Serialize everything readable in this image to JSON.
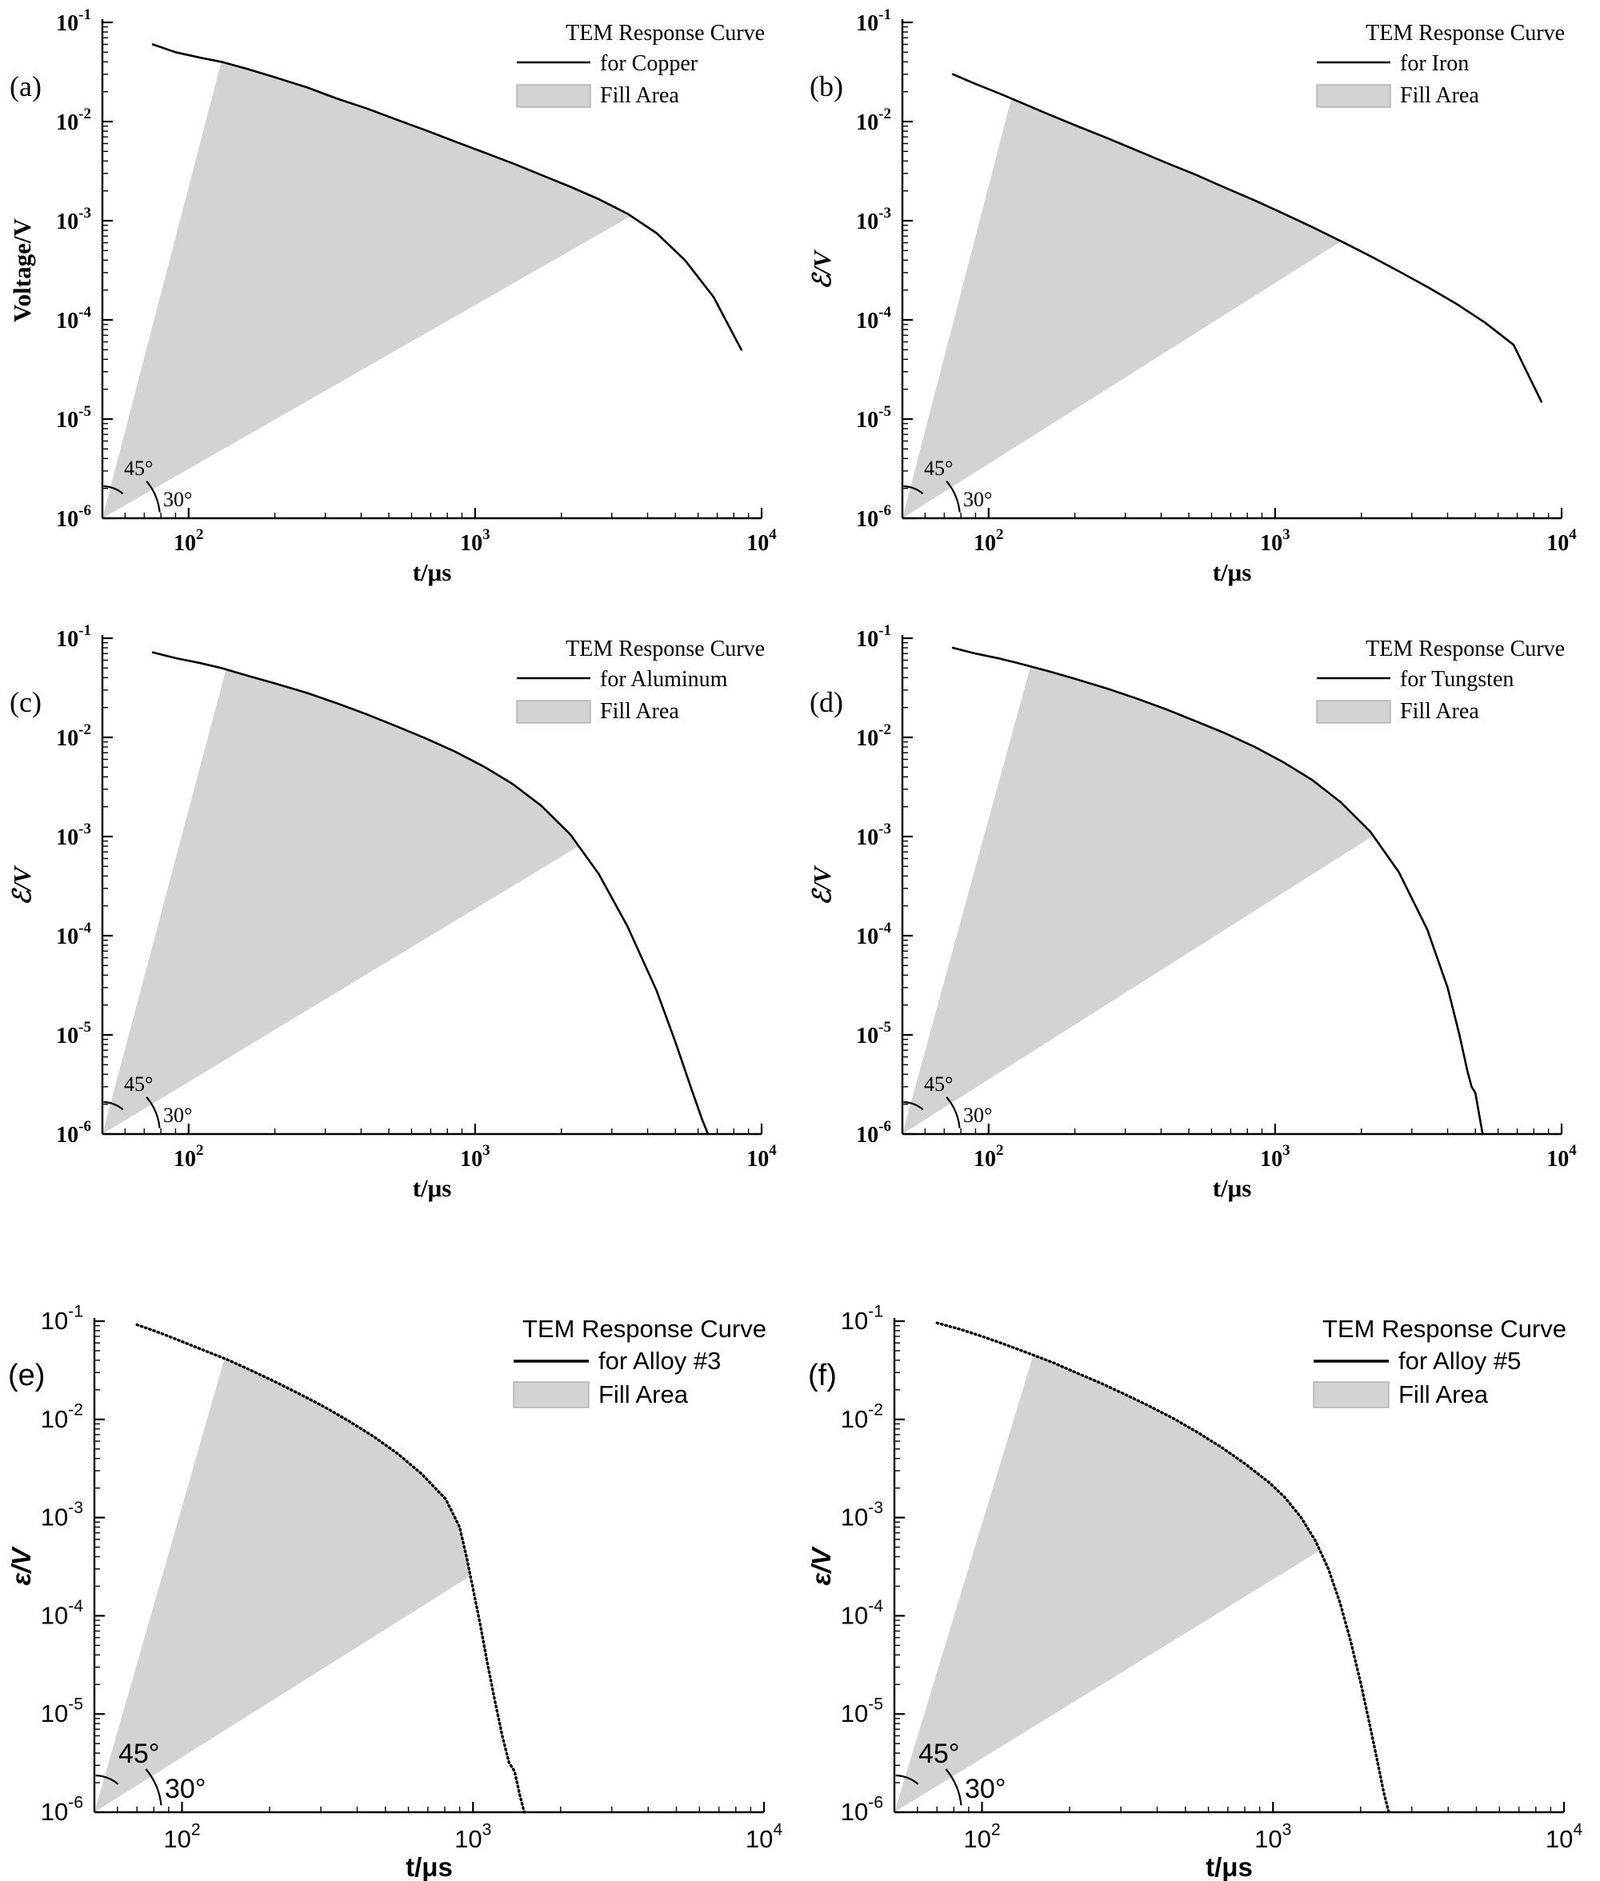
{
  "page": {
    "background": "#ffffff"
  },
  "chart_data": [
    {
      "id": "a",
      "tag": "(a)",
      "type": "line",
      "xlabel": "t/μs",
      "ylabel": "Voltage/V",
      "legend": {
        "title": "TEM Response Curve",
        "series_label": "for Copper",
        "fill_label": "Fill Area"
      },
      "legend_position": "top-right",
      "grid": false,
      "xlim": [
        50,
        10000
      ],
      "ylim": [
        1e-06,
        0.1
      ],
      "x_ticks": [
        100,
        1000,
        10000
      ],
      "y_ticks": [
        0.1,
        0.01,
        0.001,
        0.0001,
        1e-05,
        1e-06
      ],
      "angle_labels": [
        "45°",
        "30°"
      ],
      "fill": {
        "upper_t": 130,
        "lower_t": 3500
      },
      "series": [
        {
          "name": "TEM Response Curve for Copper",
          "points": [
            [
              75,
              0.06
            ],
            [
              90,
              0.05
            ],
            [
              110,
              0.044
            ],
            [
              130,
              0.04
            ],
            [
              160,
              0.034
            ],
            [
              200,
              0.028
            ],
            [
              260,
              0.022
            ],
            [
              330,
              0.017
            ],
            [
              420,
              0.0135
            ],
            [
              530,
              0.0105
            ],
            [
              670,
              0.0082
            ],
            [
              850,
              0.0063
            ],
            [
              1070,
              0.0049
            ],
            [
              1350,
              0.0038
            ],
            [
              1700,
              0.0029
            ],
            [
              2150,
              0.0022
            ],
            [
              2700,
              0.00165
            ],
            [
              3400,
              0.00118
            ],
            [
              4300,
              0.00075
            ],
            [
              5400,
              0.0004
            ],
            [
              6800,
              0.00017
            ],
            [
              8500,
              5e-05
            ]
          ]
        }
      ],
      "style": {
        "font": "serif-bold",
        "ylabel_italic": false
      },
      "colors": {
        "line": "#000000",
        "fill": "#d3d3d3"
      }
    },
    {
      "id": "b",
      "tag": "(b)",
      "type": "line",
      "xlabel": "t/μs",
      "ylabel": "ℰ/V",
      "legend": {
        "title": "TEM Response Curve",
        "series_label": "for Iron",
        "fill_label": "Fill Area"
      },
      "legend_position": "top-right",
      "grid": false,
      "xlim": [
        50,
        10000
      ],
      "ylim": [
        1e-06,
        0.1
      ],
      "x_ticks": [
        100,
        1000,
        10000
      ],
      "y_ticks": [
        0.1,
        0.01,
        0.001,
        0.0001,
        1e-05,
        1e-06
      ],
      "angle_labels": [
        "45°",
        "30°"
      ],
      "fill": {
        "upper_t": 120,
        "lower_t": 1700
      },
      "series": [
        {
          "name": "TEM Response Curve for Iron",
          "points": [
            [
              75,
              0.03
            ],
            [
              90,
              0.024
            ],
            [
              110,
              0.019
            ],
            [
              130,
              0.0155
            ],
            [
              160,
              0.012
            ],
            [
              200,
              0.0092
            ],
            [
              260,
              0.0068
            ],
            [
              330,
              0.0051
            ],
            [
              420,
              0.0038
            ],
            [
              530,
              0.0029
            ],
            [
              670,
              0.00215
            ],
            [
              850,
              0.0016
            ],
            [
              1070,
              0.00118
            ],
            [
              1350,
              0.00086
            ],
            [
              1700,
              0.00062
            ],
            [
              2150,
              0.00044
            ],
            [
              2700,
              0.00031
            ],
            [
              3400,
              0.000215
            ],
            [
              4300,
              0.000145
            ],
            [
              5400,
              9.4e-05
            ],
            [
              6800,
              5.6e-05
            ],
            [
              8500,
              1.5e-05
            ]
          ]
        }
      ],
      "style": {
        "font": "serif-bold",
        "ylabel_italic": true
      },
      "colors": {
        "line": "#000000",
        "fill": "#d3d3d3"
      }
    },
    {
      "id": "c",
      "tag": "(c)",
      "type": "line",
      "xlabel": "t/μs",
      "ylabel": "ℰ/V",
      "legend": {
        "title": "TEM Response Curve",
        "series_label": "for Aluminum",
        "fill_label": "Fill Area"
      },
      "legend_position": "top-right",
      "grid": false,
      "xlim": [
        50,
        10000
      ],
      "ylim": [
        1e-06,
        0.1
      ],
      "x_ticks": [
        100,
        1000,
        10000
      ],
      "y_ticks": [
        0.1,
        0.01,
        0.001,
        0.0001,
        1e-05,
        1e-06
      ],
      "angle_labels": [
        "45°",
        "30°"
      ],
      "fill": {
        "upper_t": 135,
        "lower_t": 2300
      },
      "series": [
        {
          "name": "TEM Response Curve for Aluminum",
          "points": [
            [
              75,
              0.072
            ],
            [
              90,
              0.063
            ],
            [
              110,
              0.056
            ],
            [
              130,
              0.05
            ],
            [
              160,
              0.042
            ],
            [
              200,
              0.035
            ],
            [
              260,
              0.028
            ],
            [
              330,
              0.022
            ],
            [
              420,
              0.017
            ],
            [
              530,
              0.013
            ],
            [
              670,
              0.0098
            ],
            [
              850,
              0.0072
            ],
            [
              1070,
              0.0051
            ],
            [
              1350,
              0.0034
            ],
            [
              1700,
              0.00205
            ],
            [
              2150,
              0.00105
            ],
            [
              2700,
              0.00042
            ],
            [
              3400,
              0.000125
            ],
            [
              4300,
              2.8e-05
            ],
            [
              5000,
              8.5e-06
            ],
            [
              5700,
              2.8e-06
            ],
            [
              6200,
              1.4e-06
            ],
            [
              6500,
              1e-06
            ]
          ]
        }
      ],
      "style": {
        "font": "serif-bold",
        "ylabel_italic": true
      },
      "colors": {
        "line": "#000000",
        "fill": "#d3d3d3"
      }
    },
    {
      "id": "d",
      "tag": "(d)",
      "type": "line",
      "xlabel": "t/μs",
      "ylabel": "ℰ/V",
      "legend": {
        "title": "TEM Response Curve",
        "series_label": "for Tungsten",
        "fill_label": "Fill Area"
      },
      "legend_position": "top-right",
      "grid": false,
      "xlim": [
        50,
        10000
      ],
      "ylim": [
        1e-06,
        0.1
      ],
      "x_ticks": [
        100,
        1000,
        10000
      ],
      "y_ticks": [
        0.1,
        0.01,
        0.001,
        0.0001,
        1e-05,
        1e-06
      ],
      "angle_labels": [
        "45°",
        "30°"
      ],
      "fill": {
        "upper_t": 140,
        "lower_t": 2200
      },
      "series": [
        {
          "name": "TEM Response Curve for Tungsten",
          "points": [
            [
              75,
              0.08
            ],
            [
              90,
              0.07
            ],
            [
              110,
              0.062
            ],
            [
              130,
              0.055
            ],
            [
              160,
              0.047
            ],
            [
              200,
              0.039
            ],
            [
              260,
              0.031
            ],
            [
              330,
              0.0245
            ],
            [
              420,
              0.019
            ],
            [
              530,
              0.0145
            ],
            [
              670,
              0.011
            ],
            [
              850,
              0.008
            ],
            [
              1070,
              0.0056
            ],
            [
              1350,
              0.0037
            ],
            [
              1700,
              0.0022
            ],
            [
              2150,
              0.00112
            ],
            [
              2700,
              0.00044
            ],
            [
              3400,
              0.000115
            ],
            [
              4000,
              3e-05
            ],
            [
              4400,
              1e-05
            ],
            [
              4700,
              4.2e-06
            ],
            [
              4850,
              3e-06
            ],
            [
              5000,
              2.6e-06
            ],
            [
              5150,
              1.6e-06
            ],
            [
              5300,
              1e-06
            ]
          ]
        }
      ],
      "style": {
        "font": "serif-bold",
        "ylabel_italic": true
      },
      "colors": {
        "line": "#000000",
        "fill": "#d3d3d3"
      }
    },
    {
      "id": "e",
      "tag": "(e)",
      "type": "line",
      "xlabel": "t/μs",
      "ylabel": "ε/V",
      "legend": {
        "title": "TEM Response Curve",
        "series_label": "for Alloy #3",
        "fill_label": "Fill Area"
      },
      "legend_position": "top-right",
      "grid": false,
      "xlim": [
        50,
        10000
      ],
      "ylim": [
        1e-06,
        0.1
      ],
      "x_ticks": [
        100,
        1000,
        10000
      ],
      "y_ticks": [
        0.1,
        0.01,
        0.001,
        0.0001,
        1e-05,
        1e-06
      ],
      "angle_labels": [
        "45°",
        "30°"
      ],
      "fill": {
        "upper_t": 140,
        "lower_t": 980
      },
      "series": [
        {
          "name": "TEM Response Curve for Alloy #3",
          "points": [
            [
              70,
              0.092
            ],
            [
              85,
              0.075
            ],
            [
              100,
              0.062
            ],
            [
              120,
              0.05
            ],
            [
              145,
              0.04
            ],
            [
              175,
              0.031
            ],
            [
              210,
              0.024
            ],
            [
              255,
              0.018
            ],
            [
              310,
              0.0133
            ],
            [
              375,
              0.0096
            ],
            [
              455,
              0.0067
            ],
            [
              550,
              0.0045
            ],
            [
              665,
              0.0028
            ],
            [
              805,
              0.00155
            ],
            [
              900,
              0.0008
            ],
            [
              950,
              0.0004
            ],
            [
              1000,
              0.00019
            ],
            [
              1060,
              8e-05
            ],
            [
              1120,
              3.3e-05
            ],
            [
              1190,
              1.35e-05
            ],
            [
              1260,
              6e-06
            ],
            [
              1330,
              3.2e-06
            ],
            [
              1390,
              2.6e-06
            ],
            [
              1440,
              1.6e-06
            ],
            [
              1500,
              1e-06
            ]
          ]
        }
      ],
      "style": {
        "font": "sans",
        "ylabel_italic": true
      },
      "colors": {
        "line": "#000000",
        "fill": "#d3d3d3"
      }
    },
    {
      "id": "f",
      "tag": "(f)",
      "type": "line",
      "xlabel": "t/μs",
      "ylabel": "ε/V",
      "legend": {
        "title": "TEM Response Curve",
        "series_label": "for Alloy #5",
        "fill_label": "Fill Area"
      },
      "legend_position": "top-right",
      "grid": false,
      "xlim": [
        50,
        10000
      ],
      "ylim": [
        1e-06,
        0.1
      ],
      "x_ticks": [
        100,
        1000,
        10000
      ],
      "y_ticks": [
        0.1,
        0.01,
        0.001,
        0.0001,
        1e-05,
        1e-06
      ],
      "angle_labels": [
        "45°",
        "30°"
      ],
      "fill": {
        "upper_t": 150,
        "lower_t": 1450
      },
      "series": [
        {
          "name": "TEM Response Curve for Alloy #5",
          "points": [
            [
              70,
              0.096
            ],
            [
              85,
              0.082
            ],
            [
              100,
              0.07
            ],
            [
              120,
              0.058
            ],
            [
              145,
              0.047
            ],
            [
              175,
              0.038
            ],
            [
              210,
              0.03
            ],
            [
              255,
              0.0235
            ],
            [
              310,
              0.018
            ],
            [
              375,
              0.0137
            ],
            [
              455,
              0.0102
            ],
            [
              550,
              0.0074
            ],
            [
              665,
              0.0052
            ],
            [
              805,
              0.0035
            ],
            [
              975,
              0.00225
            ],
            [
              1100,
              0.0016
            ],
            [
              1250,
              0.001
            ],
            [
              1400,
              0.00058
            ],
            [
              1550,
              0.0003
            ],
            [
              1700,
              0.000135
            ],
            [
              1850,
              5.5e-05
            ],
            [
              2000,
              2.1e-05
            ],
            [
              2150,
              7.8e-06
            ],
            [
              2300,
              3e-06
            ],
            [
              2400,
              1.6e-06
            ],
            [
              2500,
              1e-06
            ]
          ]
        }
      ],
      "style": {
        "font": "sans",
        "ylabel_italic": true
      },
      "colors": {
        "line": "#000000",
        "fill": "#d3d3d3"
      }
    }
  ]
}
